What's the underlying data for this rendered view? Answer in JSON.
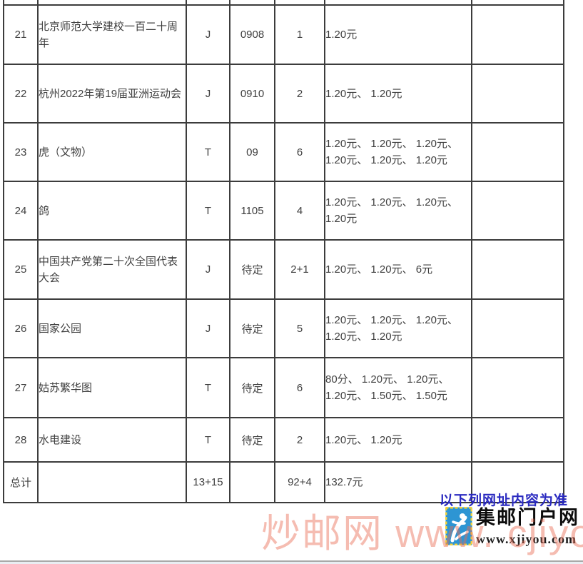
{
  "table": {
    "rows": [
      {
        "num": "21",
        "name": "北京师范大学建校一百二十周年",
        "type": "J",
        "code": "0908",
        "count": "1",
        "price": "1.20元",
        "note": ""
      },
      {
        "num": "22",
        "name": "杭州2022年第19届亚洲运动会",
        "type": "J",
        "code": "0910",
        "count": "2",
        "price": "1.20元、 1.20元",
        "note": ""
      },
      {
        "num": "23",
        "name": "虎（文物）",
        "type": "T",
        "code": "09",
        "count": "6",
        "price": "1.20元、 1.20元、 1.20元、 1.20元、 1.20元、 1.20元",
        "note": ""
      },
      {
        "num": "24",
        "name": "鸽",
        "type": "T",
        "code": "1105",
        "count": "4",
        "price": "1.20元、 1.20元、 1.20元、 1.20元",
        "note": ""
      },
      {
        "num": "25",
        "name": "中国共产党第二十次全国代表大会",
        "type": "J",
        "code": "待定",
        "count": "2+1",
        "price": "1.20元、 1.20元、 6元",
        "note": ""
      },
      {
        "num": "26",
        "name": "国家公园",
        "type": "J",
        "code": "待定",
        "count": "5",
        "price": "1.20元、 1.20元、 1.20元、 1.20元、 1.20元",
        "note": ""
      },
      {
        "num": "27",
        "name": "姑苏繁华图",
        "type": "T",
        "code": "待定",
        "count": "6",
        "price": "80分、 1.20元、 1.20元、 1.20元、 1.50元、 1.50元",
        "note": ""
      },
      {
        "num": "28",
        "name": "水电建设",
        "type": "T",
        "code": "待定",
        "count": "2",
        "price": "1.20元、 1.20元",
        "note": ""
      }
    ],
    "total": {
      "label": "总计",
      "name": "",
      "type_total": "13+15",
      "code": "",
      "count_total": "92+4",
      "price_total": "132.7元",
      "note": ""
    }
  },
  "footer": {
    "notice": "以下列网址内容为准",
    "logo_icon": "stamp-icon",
    "logo_title": "集邮门户网",
    "logo_url": "www.xjiyou.com",
    "watermark": "炒邮网 www. cjiyou. net"
  },
  "colors": {
    "table_border": "#3c3c3c",
    "table_text": "#3f3f3f",
    "notice_blue": "#2a2ac0",
    "watermark_pink": "#e96a53",
    "logo_blue": "#2d95d3",
    "logo_gold": "#f6d33c"
  }
}
